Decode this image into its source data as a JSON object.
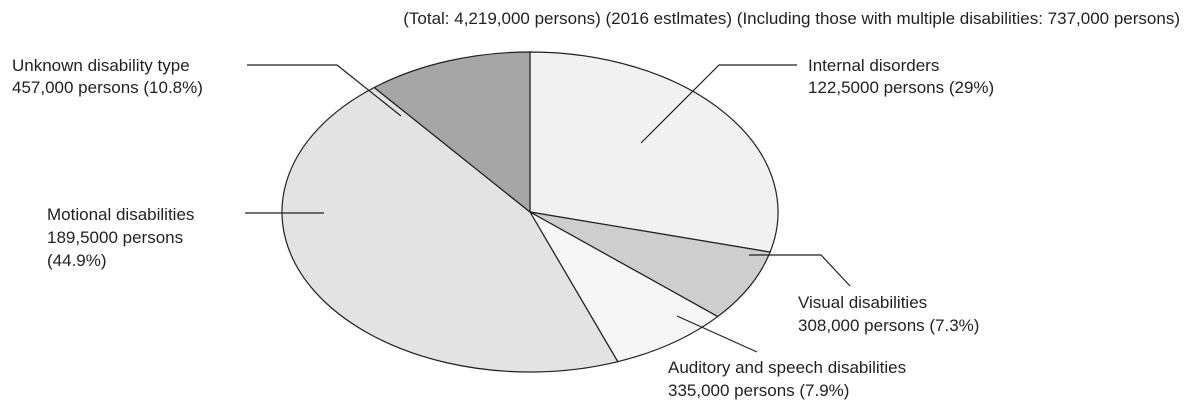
{
  "colors": {
    "text": "#231f20",
    "edge": "#231f20",
    "slice_fills": [
      "#f1f1f1",
      "#cecece",
      "#f6f6f6",
      "#e3e3e3",
      "#a6a6a6"
    ]
  },
  "chart_data": {
    "type": "pie",
    "subtitle": "(Total: 4,219,000 persons) (2016 estlmates) (Including those with multiple disabilities: 737,000 persons)",
    "start": "top",
    "direction": "clockwise",
    "legend": "none (leader-line labels)",
    "slices": [
      {
        "category": "Internal disorders",
        "persons": "122,5000 persons (29%)",
        "value": 29
      },
      {
        "category": "Visual disabilities",
        "persons": "308,000 persons (7.3%)",
        "value": 7.3
      },
      {
        "category": "Auditory and speech disabilities",
        "persons": "335,000 persons (7.9%)",
        "value": 7.9
      },
      {
        "category": "Motional disabilities",
        "persons_line1": "189,5000 persons",
        "persons_line2": "(44.9%)",
        "value": 44.9
      },
      {
        "category": "Unknown disability type",
        "persons": "457,000 persons (10.8%)",
        "value": 10.8
      }
    ]
  }
}
